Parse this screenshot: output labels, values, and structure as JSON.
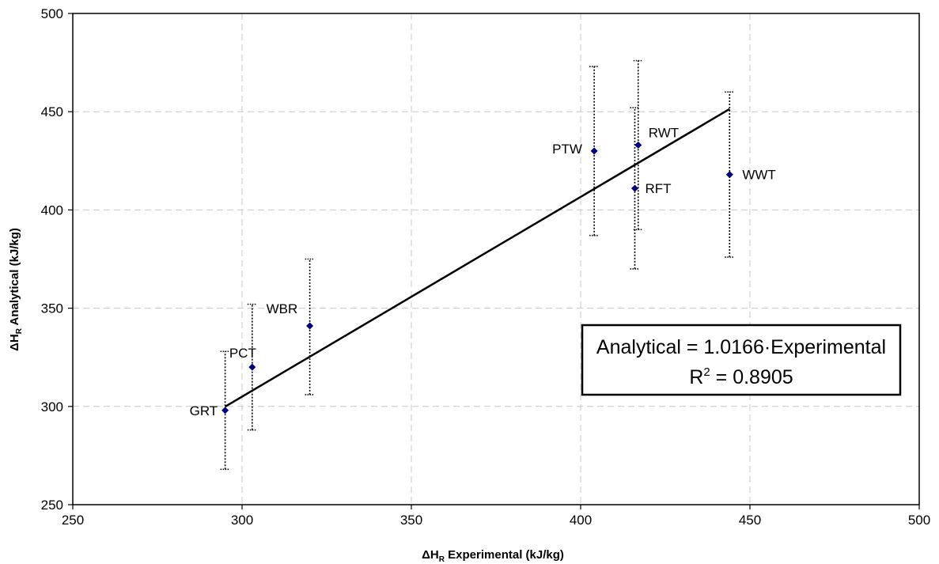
{
  "chart_data": {
    "type": "scatter",
    "xlabel_prefix": "ΔH",
    "xlabel_sub": "R",
    "xlabel_suffix": " Experimental (kJ/kg)",
    "ylabel_prefix": "ΔH",
    "ylabel_sub": "R",
    "ylabel_suffix": " Analytical (kJ/kg)",
    "xlim": [
      250,
      500
    ],
    "ylim": [
      250,
      500
    ],
    "x_ticks": [
      250,
      300,
      350,
      400,
      450,
      500
    ],
    "y_ticks": [
      250,
      300,
      350,
      400,
      450,
      500
    ],
    "grid": true,
    "marker_color": "#000080",
    "points": [
      {
        "label": "GRT",
        "x": 295,
        "y": 298,
        "err_low": 268,
        "err_high": 328
      },
      {
        "label": "PCT",
        "x": 303,
        "y": 320,
        "err_low": 288,
        "err_high": 352
      },
      {
        "label": "WBR",
        "x": 320,
        "y": 341,
        "err_low": 306,
        "err_high": 375
      },
      {
        "label": "PTW",
        "x": 404,
        "y": 430,
        "err_low": 387,
        "err_high": 473
      },
      {
        "label": "RWT",
        "x": 417,
        "y": 433,
        "err_low": 390,
        "err_high": 476
      },
      {
        "label": "RFT",
        "x": 416,
        "y": 411,
        "err_low": 370,
        "err_high": 452
      },
      {
        "label": "WWT",
        "x": 444,
        "y": 418,
        "err_low": 376,
        "err_high": 460
      }
    ],
    "fit": {
      "slope": 1.0166,
      "x_range": [
        295,
        444
      ],
      "equation": "Analytical = 1.0166·Experimental",
      "r2_prefix": "R",
      "r2_sup": "2",
      "r2_suffix": " = 0.8905"
    }
  }
}
